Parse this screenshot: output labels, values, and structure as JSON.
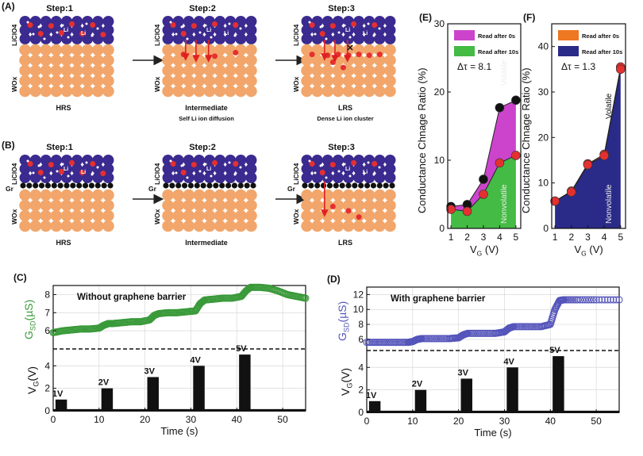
{
  "panels": {
    "A": {
      "label": "(A)",
      "steps": [
        {
          "title": "Step:1",
          "caption": "HRS",
          "subcaption": "",
          "top_label": "LiClO4",
          "bottom_label": "WOx",
          "li_labels": [
            "Li",
            "Li"
          ]
        },
        {
          "title": "Step:2",
          "caption": "Intermediate",
          "subcaption": "Self Li ion diffusion",
          "top_label": "LiClO4",
          "bottom_label": "WOx",
          "li_labels": [
            "Li",
            "Li"
          ]
        },
        {
          "title": "Step:3",
          "caption": "LRS",
          "subcaption": "Dense Li ion cluster",
          "top_label": "LiClO4",
          "bottom_label": "WOx",
          "li_labels": [
            "Li",
            "Li"
          ]
        }
      ]
    },
    "B": {
      "label": "(B)",
      "gr_label": "Gr",
      "steps": [
        {
          "title": "Step:1",
          "caption": "HRS",
          "top_label": "LiClO4",
          "bottom_label": "WOx",
          "li_labels": [
            "Li",
            "Li"
          ]
        },
        {
          "title": "Step:2",
          "caption": "Intermediate",
          "top_label": "LiClO4",
          "bottom_label": "WOx",
          "li_labels": [
            "Li"
          ]
        },
        {
          "title": "Step:3",
          "caption": "LRS",
          "top_label": "LiClO4",
          "bottom_label": "WOx",
          "li_labels": [
            "Li",
            "Li"
          ]
        }
      ]
    }
  },
  "chart_data": [
    {
      "id": "C",
      "panel_label": "(C)",
      "type": "line",
      "annotation": "Without graphene barrier",
      "series_color": "#3a9a3a",
      "top_ylabel": "G_SD(µS)",
      "bottom_ylabel": "V_G(V)",
      "xlabel": "Time (s)",
      "xlim": [
        0,
        55
      ],
      "xticks": [
        0,
        10,
        20,
        30,
        40,
        50
      ],
      "top_ylim": [
        5,
        8.5
      ],
      "top_yticks": [
        6,
        7,
        8
      ],
      "bottom_ylim": [
        0,
        5.5
      ],
      "bottom_yticks": [
        0,
        2,
        4
      ],
      "conductance": {
        "t": [
          0,
          2,
          4,
          6,
          8,
          10,
          11,
          12,
          13,
          15,
          17,
          19,
          21,
          22,
          23,
          25,
          27,
          29,
          31,
          32,
          33,
          35,
          37,
          39,
          41,
          42,
          43,
          45,
          47,
          49,
          51,
          53,
          55
        ],
        "g": [
          5.9,
          6.0,
          6.05,
          6.1,
          6.1,
          6.15,
          6.3,
          6.4,
          6.4,
          6.45,
          6.5,
          6.5,
          6.6,
          6.85,
          6.95,
          7.0,
          7.0,
          7.05,
          7.1,
          7.5,
          7.7,
          7.75,
          7.8,
          7.8,
          7.9,
          8.2,
          8.4,
          8.4,
          8.35,
          8.2,
          8.0,
          7.9,
          7.8
        ]
      },
      "pulses": [
        {
          "label": "1V",
          "t_start": 0.5,
          "t_end": 3,
          "v": 1
        },
        {
          "label": "2V",
          "t_start": 10.5,
          "t_end": 13,
          "v": 2
        },
        {
          "label": "3V",
          "t_start": 20.5,
          "t_end": 23,
          "v": 3
        },
        {
          "label": "4V",
          "t_start": 30.5,
          "t_end": 33,
          "v": 4
        },
        {
          "label": "5V",
          "t_start": 40.5,
          "t_end": 43,
          "v": 5
        }
      ]
    },
    {
      "id": "D",
      "panel_label": "(D)",
      "type": "line",
      "annotation": "With graphene barrier",
      "series_color": "#5555bb",
      "top_ylabel": "G_SD(µS)",
      "bottom_ylabel": "V_G(V)",
      "xlabel": "Time (s)",
      "xlim": [
        0,
        55
      ],
      "xticks": [
        0,
        10,
        20,
        30,
        40,
        50
      ],
      "top_ylim": [
        4.5,
        13
      ],
      "top_yticks": [
        6,
        8,
        10,
        12
      ],
      "bottom_ylim": [
        0,
        5.5
      ],
      "bottom_yticks": [
        0,
        2,
        4
      ],
      "conductance": {
        "t": [
          0,
          3,
          6,
          9,
          10,
          11,
          12,
          15,
          18,
          20,
          21,
          22,
          25,
          28,
          30,
          31,
          32,
          35,
          38,
          40,
          41,
          42,
          43,
          46,
          50,
          55
        ],
        "g": [
          5.6,
          5.6,
          5.6,
          5.6,
          5.7,
          6.0,
          6.1,
          6.1,
          6.1,
          6.2,
          6.6,
          6.8,
          6.8,
          6.8,
          7.0,
          7.5,
          7.7,
          7.7,
          7.7,
          8.0,
          10.0,
          11.2,
          11.3,
          11.3,
          11.3,
          11.3
        ]
      },
      "pulses": [
        {
          "label": "1V",
          "t_start": 0.5,
          "t_end": 3,
          "v": 1
        },
        {
          "label": "2V",
          "t_start": 10.5,
          "t_end": 13,
          "v": 2
        },
        {
          "label": "3V",
          "t_start": 20.5,
          "t_end": 23,
          "v": 3
        },
        {
          "label": "4V",
          "t_start": 30.5,
          "t_end": 33,
          "v": 4
        },
        {
          "label": "5V",
          "t_start": 40.5,
          "t_end": 43,
          "v": 5
        }
      ]
    },
    {
      "id": "E",
      "panel_label": "(E)",
      "type": "area",
      "ylabel": "Conductance Chnage Ratio (%)",
      "xlabel": "V_G (V)",
      "xlim": [
        0.8,
        5.3
      ],
      "xticks": [
        1,
        2,
        3,
        4,
        5
      ],
      "ylim": [
        0,
        30
      ],
      "yticks": [
        0,
        10,
        20,
        30
      ],
      "annotation": "Δτ = 8.1",
      "legend": [
        "Read after 0s",
        "Read after 10s"
      ],
      "legend_colors": [
        "#cc44cc",
        "#44bb44"
      ],
      "region_labels": [
        "Volatile",
        "Nonvolatile"
      ],
      "x": [
        1,
        2,
        3,
        4,
        5
      ],
      "series": [
        {
          "name": "Read after 0s",
          "values": [
            3.2,
            3.5,
            7.2,
            17.7,
            18.8
          ]
        },
        {
          "name": "Read after 10s",
          "values": [
            2.8,
            2.5,
            5.0,
            9.6,
            10.7
          ]
        }
      ]
    },
    {
      "id": "F",
      "panel_label": "(F)",
      "type": "area",
      "ylabel": "Conductance Chnage Ratio (%)",
      "xlabel": "V_G (V)",
      "xlim": [
        0.8,
        5.3
      ],
      "xticks": [
        1,
        2,
        3,
        4,
        5
      ],
      "ylim": [
        0,
        45
      ],
      "yticks": [
        0,
        10,
        20,
        30,
        40
      ],
      "annotation": "Δτ = 1.3",
      "legend": [
        "Read after 0s",
        "Read after 10s"
      ],
      "legend_colors": [
        "#ee7722",
        "#2a2a88"
      ],
      "region_labels": [
        "Volatile",
        "Nonvolatile"
      ],
      "x": [
        1,
        2,
        3,
        4,
        5
      ],
      "series": [
        {
          "name": "Read after 0s",
          "values": [
            6.0,
            8.2,
            14.2,
            16.3,
            35.5
          ]
        },
        {
          "name": "Read after 10s",
          "values": [
            6.0,
            8.0,
            14.0,
            16.0,
            35.0
          ]
        }
      ]
    }
  ]
}
